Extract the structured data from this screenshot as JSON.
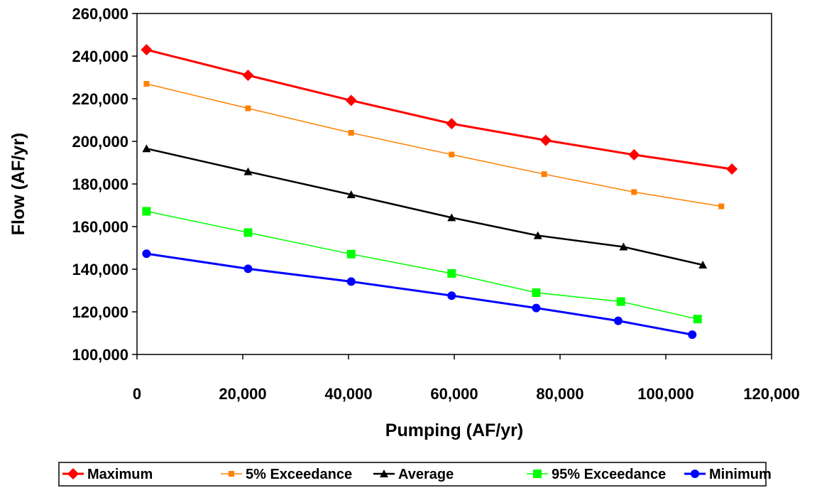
{
  "chart_data": {
    "type": "line",
    "title": "",
    "xlabel": "Pumping (AF/yr)",
    "ylabel": "Flow (AF/yr)",
    "xlim": [
      0,
      120000
    ],
    "ylim": [
      100000,
      260000
    ],
    "x_ticks": [
      "0",
      "20,000",
      "40,000",
      "60,000",
      "80,000",
      "100,000",
      "120,000"
    ],
    "y_ticks": [
      "100,000",
      "120,000",
      "140,000",
      "160,000",
      "180,000",
      "200,000",
      "220,000",
      "240,000",
      "260,000"
    ],
    "grid": false,
    "legend_position": "bottom",
    "series": [
      {
        "name": "Maximum",
        "color": "#ff0000",
        "marker": "diamond",
        "points": [
          [
            1800,
            243000
          ],
          [
            21000,
            231000
          ],
          [
            40500,
            219200
          ],
          [
            59500,
            208300
          ],
          [
            77300,
            200500
          ],
          [
            94000,
            193700
          ],
          [
            112500,
            187000
          ]
        ]
      },
      {
        "name": "5% Exceedance",
        "color": "#ff8000",
        "marker": "square-small",
        "points": [
          [
            1800,
            227000
          ],
          [
            21000,
            215500
          ],
          [
            40500,
            204000
          ],
          [
            59500,
            193800
          ],
          [
            77000,
            184600
          ],
          [
            94000,
            176200
          ],
          [
            110500,
            169500
          ]
        ]
      },
      {
        "name": "Average",
        "color": "#000000",
        "marker": "triangle",
        "points": [
          [
            1800,
            196600
          ],
          [
            21000,
            185800
          ],
          [
            40500,
            175000
          ],
          [
            59500,
            164200
          ],
          [
            75800,
            155800
          ],
          [
            92000,
            150500
          ],
          [
            107000,
            142000
          ]
        ]
      },
      {
        "name": "95% Exceedance",
        "color": "#00ff00",
        "marker": "square",
        "points": [
          [
            1800,
            167200
          ],
          [
            21000,
            157200
          ],
          [
            40500,
            147100
          ],
          [
            59500,
            138000
          ],
          [
            75500,
            129000
          ],
          [
            91500,
            124800
          ],
          [
            106000,
            116600
          ]
        ]
      },
      {
        "name": "Minimum",
        "color": "#0000ff",
        "marker": "circle",
        "points": [
          [
            1800,
            147300
          ],
          [
            21000,
            140200
          ],
          [
            40500,
            134200
          ],
          [
            59500,
            127600
          ],
          [
            75500,
            121800
          ],
          [
            91000,
            115800
          ],
          [
            105000,
            109300
          ]
        ]
      }
    ]
  }
}
